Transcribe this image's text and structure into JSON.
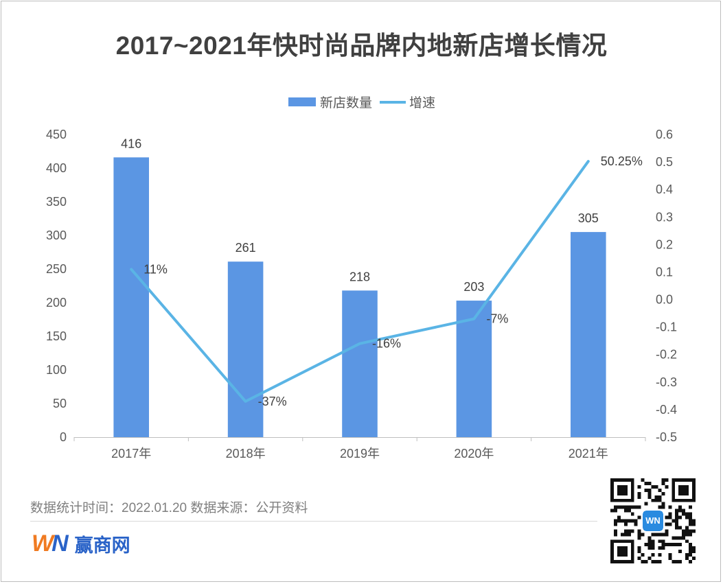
{
  "title": "2017~2021年快时尚品牌内地新店增长情况",
  "legend": {
    "bar_label": "新店数量",
    "line_label": "增速"
  },
  "footer": {
    "note": "数据统计时间：2022.01.20  数据来源：公开资料",
    "brand_logo": "WN",
    "brand_name": "赢商网",
    "qr_badge": "WN"
  },
  "colors": {
    "bar": "#5b96e3",
    "line": "#5ab4e5"
  },
  "chart_data": {
    "type": "bar+line",
    "categories": [
      "2017年",
      "2018年",
      "2019年",
      "2020年",
      "2021年"
    ],
    "series": [
      {
        "name": "新店数量",
        "type": "bar",
        "axis": "left",
        "values": [
          416,
          261,
          218,
          203,
          305
        ],
        "labels": [
          "416",
          "261",
          "218",
          "203",
          "305"
        ]
      },
      {
        "name": "增速",
        "type": "line",
        "axis": "right",
        "values": [
          0.11,
          -0.37,
          -0.16,
          -0.07,
          0.5025
        ],
        "labels": [
          "11%",
          "-37%",
          "-16%",
          "-7%",
          "50.25%"
        ]
      }
    ],
    "y_left": {
      "min": 0,
      "max": 450,
      "step": 50,
      "ticks": [
        "0",
        "50",
        "100",
        "150",
        "200",
        "250",
        "300",
        "350",
        "400",
        "450"
      ]
    },
    "y_right": {
      "min": -0.5,
      "max": 0.6,
      "step": 0.1,
      "ticks": [
        "-0.5",
        "-0.4",
        "-0.3",
        "-0.2",
        "-0.1",
        "0.0",
        "0.1",
        "0.2",
        "0.3",
        "0.4",
        "0.5",
        "0.6"
      ]
    },
    "grid": false,
    "legend_position": "top-center"
  }
}
